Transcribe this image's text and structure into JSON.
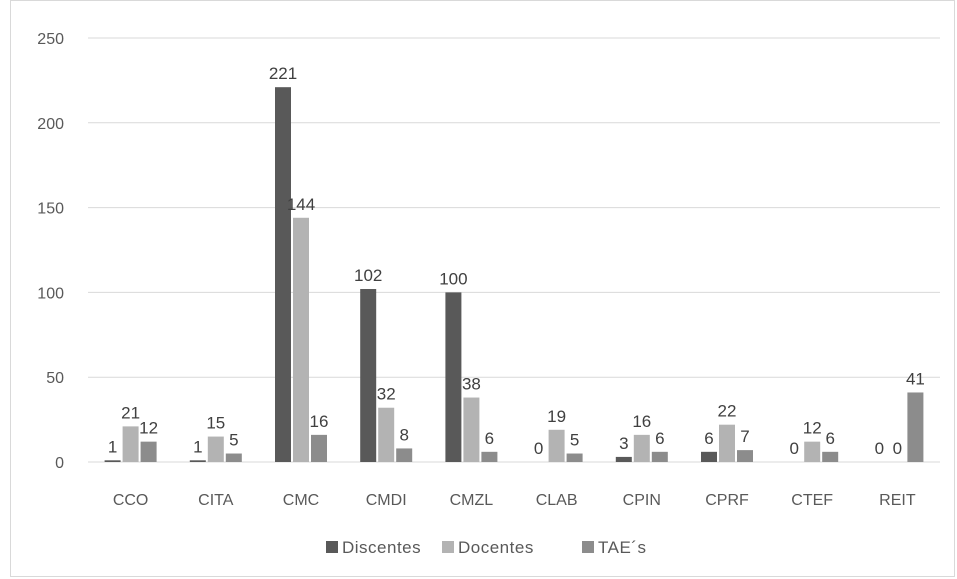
{
  "chart_data": {
    "type": "bar",
    "categories": [
      "CCO",
      "CITA",
      "CMC",
      "CMDI",
      "CMZL",
      "CLAB",
      "CPIN",
      "CPRF",
      "CTEF",
      "REIT"
    ],
    "series": [
      {
        "name": "Discentes",
        "color": "#595959",
        "values": [
          1,
          1,
          221,
          102,
          100,
          0,
          3,
          6,
          0,
          0
        ]
      },
      {
        "name": "Docentes",
        "color": "#b3b3b3",
        "values": [
          21,
          15,
          144,
          32,
          38,
          19,
          16,
          22,
          12,
          0
        ]
      },
      {
        "name": "TAE´s",
        "color": "#8c8c8c",
        "values": [
          12,
          5,
          16,
          8,
          6,
          5,
          6,
          7,
          6,
          41
        ]
      }
    ],
    "ylim": [
      0,
      250
    ],
    "yticks": [
      0,
      50,
      100,
      150,
      200,
      250
    ],
    "grid": true,
    "legend_position": "bottom",
    "data_labels": true,
    "gridline_color": "#d9d9d9",
    "title": "",
    "xlabel": "",
    "ylabel": ""
  }
}
